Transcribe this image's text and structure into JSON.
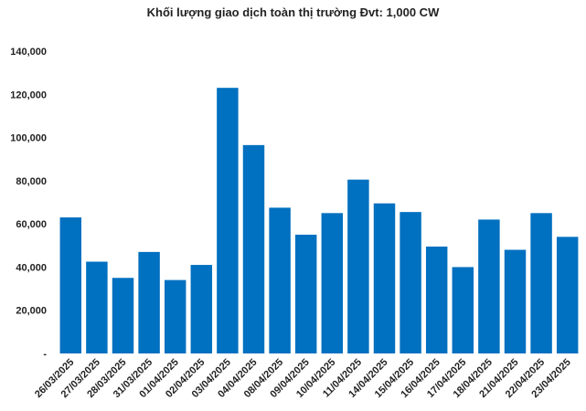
{
  "chart_data": {
    "type": "bar",
    "title": "Khối lượng giao dịch toàn thị trường Đvt: 1,000 CW",
    "categories": [
      "26/03/2025",
      "27/03/2025",
      "28/03/2025",
      "31/03/2025",
      "01/04/2025",
      "02/04/2025",
      "03/04/2025",
      "04/04/2025",
      "08/04/2025",
      "09/04/2025",
      "10/04/2025",
      "11/04/2025",
      "14/04/2025",
      "15/04/2025",
      "16/04/2025",
      "17/04/2025",
      "18/04/2025",
      "21/04/2025",
      "22/04/2025",
      "23/04/2025"
    ],
    "values": [
      63000,
      42500,
      35000,
      47000,
      34000,
      41000,
      123000,
      96500,
      67500,
      55000,
      65000,
      80500,
      69500,
      65500,
      49500,
      40000,
      62000,
      48000,
      65000,
      54000
    ],
    "ylim": [
      0,
      140000
    ],
    "yticks": [
      "-",
      "20,000",
      "40,000",
      "60,000",
      "80,000",
      "100,000",
      "120,000",
      "140,000"
    ],
    "ytick_values": [
      0,
      20000,
      40000,
      60000,
      80000,
      100000,
      120000,
      140000
    ],
    "bar_color": "#0070C0",
    "grid": false,
    "legend": "none"
  }
}
